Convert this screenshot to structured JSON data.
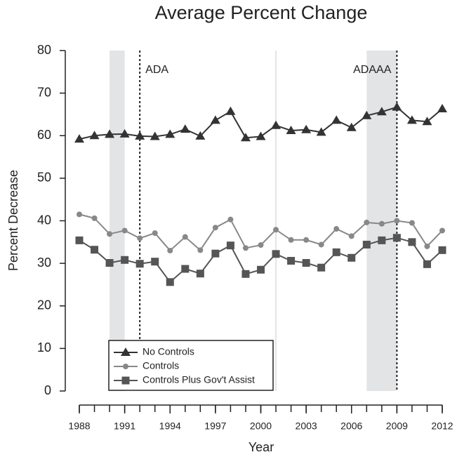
{
  "chart_data": {
    "type": "line",
    "title": "Average Percent Change",
    "x_label": "Year",
    "y_label": "Percent Decrease",
    "x": [
      1988,
      1989,
      1990,
      1991,
      1992,
      1993,
      1994,
      1995,
      1996,
      1997,
      1998,
      1999,
      2000,
      2001,
      2002,
      2003,
      2004,
      2005,
      2006,
      2007,
      2008,
      2009,
      2010,
      2011,
      2012
    ],
    "xlim": [
      1988,
      2012
    ],
    "xticks": [
      1988,
      1991,
      1994,
      1997,
      2000,
      2003,
      2006,
      2009,
      2012
    ],
    "ylim": [
      0,
      80
    ],
    "yticks": [
      0,
      10,
      20,
      30,
      40,
      50,
      60,
      70,
      80
    ],
    "shaded": [
      [
        1990,
        1991
      ],
      [
        2007,
        2009
      ]
    ],
    "vline": 2001,
    "markers": [
      {
        "x": 1992,
        "label": "ADA"
      },
      {
        "x": 2009,
        "label": "ADAAA"
      }
    ],
    "series": [
      {
        "name": "No Controls",
        "color": "#333333",
        "marker": "triangle",
        "values": [
          59.2,
          60.0,
          60.3,
          60.4,
          59.9,
          59.8,
          60.3,
          61.5,
          59.9,
          63.6,
          65.7,
          59.5,
          59.8,
          62.4,
          61.2,
          61.4,
          60.8,
          63.6,
          61.9,
          64.7,
          65.6,
          66.7,
          63.6,
          63.3,
          66.3
        ]
      },
      {
        "name": "Controls",
        "color": "#888888",
        "marker": "circle",
        "values": [
          41.5,
          40.6,
          36.9,
          37.7,
          35.9,
          37.1,
          33.0,
          36.2,
          33.1,
          38.4,
          40.3,
          33.6,
          34.3,
          37.9,
          35.5,
          35.5,
          34.4,
          38.1,
          36.4,
          39.6,
          39.3,
          40.0,
          39.5,
          34.0,
          37.7
        ]
      },
      {
        "name": "Controls Plus Gov't Assist",
        "color": "#555555",
        "marker": "square",
        "values": [
          35.4,
          33.2,
          30.1,
          30.8,
          29.9,
          30.4,
          25.6,
          28.7,
          27.6,
          32.3,
          34.2,
          27.5,
          28.5,
          32.2,
          30.6,
          30.1,
          29.0,
          32.6,
          31.3,
          34.4,
          35.4,
          36.0,
          35.0,
          29.8,
          33.1
        ]
      }
    ]
  }
}
